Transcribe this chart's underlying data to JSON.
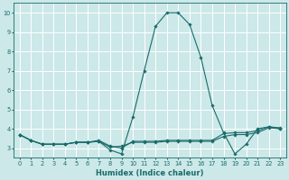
{
  "title": "",
  "xlabel": "Humidex (Indice chaleur)",
  "ylabel": "",
  "bg_color": "#cce8e8",
  "grid_color": "#ffffff",
  "line_color": "#1a6b6b",
  "xlim": [
    -0.5,
    23.5
  ],
  "ylim": [
    2.5,
    10.5
  ],
  "yticks": [
    3,
    4,
    5,
    6,
    7,
    8,
    9,
    10
  ],
  "xticks": [
    0,
    1,
    2,
    3,
    4,
    5,
    6,
    7,
    8,
    9,
    10,
    11,
    12,
    13,
    14,
    15,
    16,
    17,
    18,
    19,
    20,
    21,
    22,
    23
  ],
  "series": [
    {
      "x": [
        0,
        1,
        2,
        3,
        4,
        5,
        6,
        7,
        8,
        9,
        10,
        11,
        12,
        13,
        14,
        15,
        16,
        17,
        18,
        19,
        20,
        21,
        22,
        23
      ],
      "y": [
        3.7,
        3.4,
        3.2,
        3.2,
        3.2,
        3.3,
        3.3,
        3.35,
        2.9,
        2.7,
        4.6,
        7.0,
        9.3,
        10.0,
        10.0,
        9.4,
        7.7,
        5.2,
        3.8,
        2.7,
        3.2,
        4.0,
        4.1,
        4.0
      ]
    },
    {
      "x": [
        0,
        1,
        2,
        3,
        4,
        5,
        6,
        7,
        8,
        9,
        10,
        11,
        12,
        13,
        14,
        15,
        16,
        17,
        18,
        19,
        20,
        21,
        22,
        23
      ],
      "y": [
        3.7,
        3.4,
        3.2,
        3.2,
        3.2,
        3.3,
        3.3,
        3.35,
        3.05,
        3.1,
        3.3,
        3.3,
        3.3,
        3.35,
        3.35,
        3.35,
        3.35,
        3.35,
        3.6,
        3.7,
        3.7,
        3.8,
        4.05,
        4.0
      ]
    },
    {
      "x": [
        0,
        1,
        2,
        3,
        4,
        5,
        6,
        7,
        8,
        9,
        10,
        11,
        12,
        13,
        14,
        15,
        16,
        17,
        18,
        19,
        20,
        21,
        22,
        23
      ],
      "y": [
        3.7,
        3.4,
        3.2,
        3.2,
        3.2,
        3.3,
        3.3,
        3.4,
        3.1,
        3.0,
        3.35,
        3.35,
        3.35,
        3.4,
        3.4,
        3.4,
        3.4,
        3.4,
        3.75,
        3.8,
        3.8,
        3.9,
        4.1,
        4.05
      ]
    }
  ],
  "xlabel_fontsize": 6.0,
  "tick_fontsize": 4.8,
  "marker_size": 1.8,
  "linewidth": 0.8
}
